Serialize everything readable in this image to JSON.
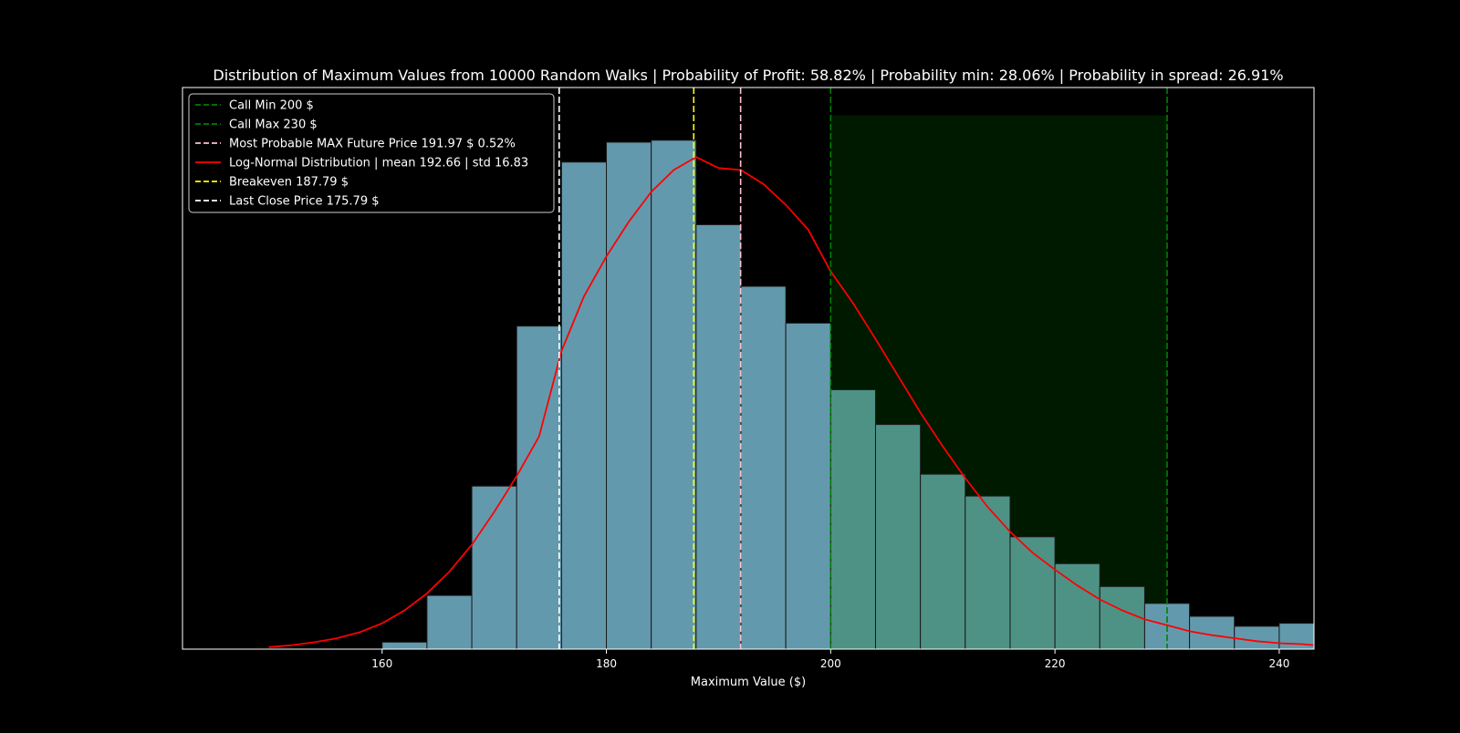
{
  "chart_data": {
    "type": "bar",
    "title": "Distribution of Maximum Values from 10000 Random Walks | Probability of Profit: 58.82% | Probability min: 28.06% | Probability in spread: 26.91%",
    "xlabel": "Maximum Value ($)",
    "ylabel": "",
    "xlim": [
      142.2,
      243.1
    ],
    "ylim": [
      0,
      0.0565
    ],
    "xticks": [
      160,
      180,
      200,
      220,
      240
    ],
    "bin_edges": [
      160,
      164,
      168,
      172,
      176,
      180,
      184,
      188,
      192,
      196,
      200,
      204,
      208,
      212,
      216,
      220,
      224,
      228,
      232,
      236,
      240,
      244
    ],
    "density": [
      0.0007,
      0.0054,
      0.0164,
      0.0325,
      0.049,
      0.051,
      0.0512,
      0.0427,
      0.0365,
      0.0328,
      0.0261,
      0.0226,
      0.0176,
      0.0154,
      0.0113,
      0.0086,
      0.0063,
      0.0046,
      0.0033,
      0.0023,
      0.0026
    ],
    "bar_color": "#6399ad",
    "bar_in_spread_color": "#4e9286",
    "spread_region": {
      "x": [
        200,
        230
      ],
      "color": "#001a00"
    },
    "lognormal": {
      "color": "#ff0000",
      "x": [
        149.9,
        152,
        154,
        156,
        158,
        160,
        162,
        164,
        166,
        168,
        170,
        172,
        174,
        176,
        178,
        180,
        182,
        184,
        186,
        188,
        190,
        192,
        194,
        196,
        198,
        200,
        202,
        204,
        206,
        208,
        210,
        212,
        214,
        216,
        218,
        220,
        222,
        224,
        226,
        228,
        230,
        232,
        234,
        236,
        238,
        240,
        242,
        243.1
      ],
      "y": [
        0.0002,
        0.0004,
        0.0007,
        0.0011,
        0.0017,
        0.0026,
        0.0039,
        0.0056,
        0.0078,
        0.0105,
        0.0138,
        0.0174,
        0.0214,
        0.03,
        0.0355,
        0.0395,
        0.043,
        0.046,
        0.0482,
        0.0495,
        0.0484,
        0.0482,
        0.0468,
        0.0447,
        0.0422,
        0.038,
        0.0348,
        0.0312,
        0.0275,
        0.0238,
        0.0204,
        0.0172,
        0.0143,
        0.0118,
        0.0097,
        0.008,
        0.0064,
        0.005,
        0.0039,
        0.003,
        0.0024,
        0.0018,
        0.0014,
        0.0011,
        0.0008,
        0.0006,
        0.0005,
        0.0004
      ]
    },
    "vlines": [
      {
        "x": 200,
        "color": "#008000",
        "label": "Call Min 200 $"
      },
      {
        "x": 230,
        "color": "#008000",
        "label": "Call Max 230 $"
      },
      {
        "x": 191.97,
        "color": "#ffc0cb",
        "label": "Most Probable MAX Future Price 191.97 $ 0.52%"
      },
      {
        "x": 187.79,
        "color": "#ffff00",
        "label": "Breakeven 187.79 $"
      },
      {
        "x": 175.79,
        "color": "#ffffff",
        "label": "Last Close Price 175.79 $"
      }
    ],
    "legend": {
      "placement": "top-left",
      "entries": [
        {
          "label": "Call Min 200 $",
          "color": "#008000",
          "style": "dashed"
        },
        {
          "label": "Call Max 230 $",
          "color": "#008000",
          "style": "dashed"
        },
        {
          "label": "Most Probable MAX Future Price 191.97 $ 0.52%",
          "color": "#ffc0cb",
          "style": "dashed"
        },
        {
          "label": "Log-Normal Distribution | mean 192.66 | std 16.83",
          "color": "#ff0000",
          "style": "solid"
        },
        {
          "label": "Breakeven 187.79 $",
          "color": "#ffff00",
          "style": "dashed"
        },
        {
          "label": "Last Close Price 175.79 $",
          "color": "#ffffff",
          "style": "dashed"
        }
      ]
    },
    "grid": false
  }
}
